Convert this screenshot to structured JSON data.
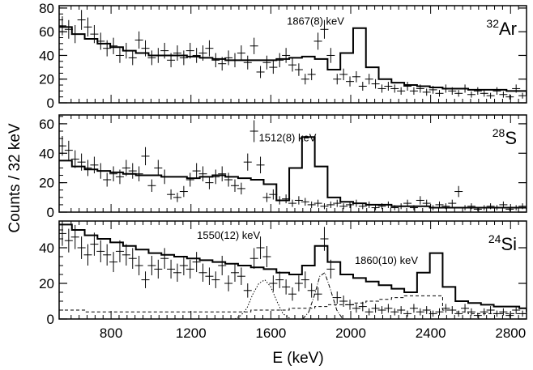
{
  "chart_data": {
    "type": "histogram-with-errorbars",
    "xlabel": "E (keV)",
    "ylabel": "Counts / 32 keV",
    "xlim": [
      540,
      2880
    ],
    "xticks": [
      800,
      1200,
      1600,
      2000,
      2400,
      2800
    ],
    "panels": [
      {
        "isotope_mass": "32",
        "isotope_symbol": "Ar",
        "ylim": [
          0,
          82
        ],
        "yticks": [
          0,
          20,
          40,
          60,
          80
        ],
        "annotations": [
          {
            "text": "1867(8) keV",
            "x": 1680,
            "y": 66
          }
        ],
        "histogram": {
          "bin_width": 64,
          "start": 540,
          "values": [
            64,
            58,
            54,
            50,
            47,
            44,
            42,
            40,
            40,
            40,
            39,
            38,
            37,
            36,
            36,
            36,
            36,
            37,
            38,
            39,
            37,
            28,
            42,
            63,
            30,
            20,
            17,
            15,
            14,
            13,
            12,
            12,
            11,
            11,
            11,
            10,
            10,
            9,
            9,
            9,
            8,
            8,
            8,
            8,
            6,
            6
          ]
        },
        "points": [
          [
            556,
            65
          ],
          [
            588,
            62
          ],
          [
            620,
            58
          ],
          [
            652,
            70
          ],
          [
            684,
            64
          ],
          [
            716,
            58
          ],
          [
            748,
            52
          ],
          [
            780,
            46
          ],
          [
            812,
            48
          ],
          [
            844,
            40
          ],
          [
            876,
            44
          ],
          [
            908,
            38
          ],
          [
            940,
            53
          ],
          [
            972,
            46
          ],
          [
            1004,
            38
          ],
          [
            1036,
            40
          ],
          [
            1068,
            44
          ],
          [
            1100,
            36
          ],
          [
            1132,
            42
          ],
          [
            1164,
            38
          ],
          [
            1196,
            44
          ],
          [
            1228,
            40
          ],
          [
            1260,
            42
          ],
          [
            1292,
            46
          ],
          [
            1324,
            36
          ],
          [
            1356,
            33
          ],
          [
            1388,
            38
          ],
          [
            1420,
            36
          ],
          [
            1452,
            42
          ],
          [
            1484,
            34
          ],
          [
            1516,
            48
          ],
          [
            1548,
            26
          ],
          [
            1580,
            34
          ],
          [
            1612,
            30
          ],
          [
            1644,
            36
          ],
          [
            1676,
            40
          ],
          [
            1708,
            32
          ],
          [
            1740,
            28
          ],
          [
            1772,
            20
          ],
          [
            1804,
            24
          ],
          [
            1836,
            52
          ],
          [
            1868,
            62
          ],
          [
            1900,
            40
          ],
          [
            1932,
            20
          ],
          [
            1964,
            24
          ],
          [
            1996,
            18
          ],
          [
            2028,
            22
          ],
          [
            2060,
            14
          ],
          [
            2092,
            20
          ],
          [
            2124,
            16
          ],
          [
            2156,
            12
          ],
          [
            2188,
            14
          ],
          [
            2220,
            12
          ],
          [
            2252,
            10
          ],
          [
            2284,
            14
          ],
          [
            2316,
            10
          ],
          [
            2348,
            12
          ],
          [
            2380,
            9
          ],
          [
            2412,
            11
          ],
          [
            2444,
            8
          ],
          [
            2476,
            12
          ],
          [
            2508,
            10
          ],
          [
            2540,
            8
          ],
          [
            2572,
            12
          ],
          [
            2604,
            7
          ],
          [
            2636,
            10
          ],
          [
            2668,
            8
          ],
          [
            2700,
            6
          ],
          [
            2732,
            10
          ],
          [
            2764,
            7
          ],
          [
            2796,
            5
          ],
          [
            2828,
            12
          ],
          [
            2860,
            6
          ]
        ]
      },
      {
        "isotope_mass": "28",
        "isotope_symbol": "S",
        "ylim": [
          0,
          66
        ],
        "yticks": [
          0,
          20,
          40,
          60
        ],
        "annotations": [
          {
            "text": "1512(8) keV",
            "x": 1540,
            "y": 48
          }
        ],
        "histogram": {
          "bin_width": 64,
          "start": 540,
          "values": [
            35,
            31,
            29,
            28,
            27,
            26,
            25,
            25,
            24,
            24,
            23,
            24,
            25,
            24,
            23,
            22,
            19,
            8,
            30,
            51,
            31,
            10,
            7,
            6,
            5,
            5,
            4,
            4,
            4,
            3,
            3,
            3,
            3,
            3,
            3,
            3,
            3,
            2,
            2,
            2,
            2,
            2,
            2,
            2,
            2,
            2
          ]
        },
        "points": [
          [
            556,
            45
          ],
          [
            588,
            42
          ],
          [
            620,
            36
          ],
          [
            652,
            34
          ],
          [
            684,
            30
          ],
          [
            716,
            32
          ],
          [
            748,
            28
          ],
          [
            780,
            22
          ],
          [
            812,
            26
          ],
          [
            844,
            24
          ],
          [
            876,
            30
          ],
          [
            908,
            28
          ],
          [
            940,
            26
          ],
          [
            972,
            38
          ],
          [
            1004,
            18
          ],
          [
            1036,
            30
          ],
          [
            1068,
            24
          ],
          [
            1100,
            12
          ],
          [
            1132,
            10
          ],
          [
            1164,
            14
          ],
          [
            1196,
            22
          ],
          [
            1228,
            28
          ],
          [
            1260,
            26
          ],
          [
            1292,
            20
          ],
          [
            1324,
            24
          ],
          [
            1356,
            26
          ],
          [
            1388,
            22
          ],
          [
            1420,
            18
          ],
          [
            1452,
            16
          ],
          [
            1484,
            34
          ],
          [
            1516,
            55
          ],
          [
            1548,
            32
          ],
          [
            1580,
            10
          ],
          [
            1612,
            12
          ],
          [
            1644,
            8
          ],
          [
            1676,
            9
          ],
          [
            1708,
            6
          ],
          [
            1740,
            8
          ],
          [
            1772,
            7
          ],
          [
            1804,
            5
          ],
          [
            1836,
            6
          ],
          [
            1868,
            4
          ],
          [
            1900,
            5
          ],
          [
            1932,
            6
          ],
          [
            1964,
            4
          ],
          [
            1996,
            5
          ],
          [
            2028,
            6
          ],
          [
            2060,
            4
          ],
          [
            2092,
            5
          ],
          [
            2124,
            3
          ],
          [
            2156,
            4
          ],
          [
            2188,
            5
          ],
          [
            2220,
            3
          ],
          [
            2252,
            4
          ],
          [
            2284,
            6
          ],
          [
            2316,
            3
          ],
          [
            2348,
            8
          ],
          [
            2380,
            6
          ],
          [
            2412,
            3
          ],
          [
            2444,
            5
          ],
          [
            2476,
            4
          ],
          [
            2508,
            6
          ],
          [
            2540,
            14
          ],
          [
            2572,
            3
          ],
          [
            2604,
            4
          ],
          [
            2636,
            2
          ],
          [
            2668,
            3
          ],
          [
            2700,
            4
          ],
          [
            2732,
            3
          ],
          [
            2764,
            5
          ],
          [
            2796,
            2
          ],
          [
            2828,
            3
          ],
          [
            2860,
            4
          ]
        ]
      },
      {
        "isotope_mass": "24",
        "isotope_symbol": "Si",
        "ylim": [
          0,
          55
        ],
        "yticks": [
          0,
          20,
          40
        ],
        "annotations": [
          {
            "text": "1550(12) keV",
            "x": 1230,
            "y": 45
          },
          {
            "text": "1860(10) keV",
            "x": 2020,
            "y": 31
          }
        ],
        "histogram": {
          "bin_width": 64,
          "start": 540,
          "values": [
            53,
            50,
            47,
            45,
            43,
            41,
            39,
            37,
            36,
            35,
            34,
            33,
            32,
            31,
            30,
            29,
            28,
            26,
            25,
            30,
            41,
            32,
            25,
            23,
            21,
            19,
            17,
            15,
            26,
            37,
            18,
            10,
            9,
            8,
            7,
            7,
            6,
            6,
            6,
            6,
            5,
            5,
            5,
            5,
            4,
            4
          ]
        },
        "background_series": {
          "name": "background",
          "bin_width": 64,
          "start": 540,
          "values": [
            5,
            5,
            4,
            4,
            4,
            4,
            4,
            4,
            4,
            4,
            4,
            4,
            4,
            4,
            4,
            5,
            5,
            5,
            6,
            6,
            7,
            8,
            8,
            9,
            10,
            11,
            12,
            13,
            13,
            13,
            5,
            4,
            3,
            3,
            3,
            3,
            3,
            3,
            3,
            3,
            3,
            3,
            3,
            3,
            3,
            3
          ]
        },
        "peak1_series": {
          "name": "peak-1550",
          "points": [
            [
              1420,
              0
            ],
            [
              1450,
              2
            ],
            [
              1480,
              6
            ],
            [
              1510,
              14
            ],
            [
              1540,
              20
            ],
            [
              1570,
              22
            ],
            [
              1600,
              18
            ],
            [
              1630,
              10
            ],
            [
              1660,
              3
            ],
            [
              1700,
              0
            ]
          ]
        },
        "peak2_series": {
          "name": "peak-1860",
          "points": [
            [
              1760,
              0
            ],
            [
              1790,
              4
            ],
            [
              1820,
              14
            ],
            [
              1845,
              24
            ],
            [
              1870,
              26
            ],
            [
              1900,
              16
            ],
            [
              1930,
              5
            ],
            [
              1960,
              0
            ]
          ]
        },
        "points": [
          [
            556,
            48
          ],
          [
            588,
            44
          ],
          [
            620,
            46
          ],
          [
            652,
            40
          ],
          [
            684,
            36
          ],
          [
            716,
            42
          ],
          [
            748,
            38
          ],
          [
            780,
            36
          ],
          [
            812,
            32
          ],
          [
            844,
            38
          ],
          [
            876,
            36
          ],
          [
            908,
            34
          ],
          [
            940,
            30
          ],
          [
            972,
            22
          ],
          [
            1004,
            30
          ],
          [
            1036,
            28
          ],
          [
            1068,
            34
          ],
          [
            1100,
            28
          ],
          [
            1132,
            26
          ],
          [
            1164,
            30
          ],
          [
            1196,
            28
          ],
          [
            1228,
            32
          ],
          [
            1260,
            26
          ],
          [
            1292,
            24
          ],
          [
            1324,
            22
          ],
          [
            1356,
            30
          ],
          [
            1388,
            20
          ],
          [
            1420,
            26
          ],
          [
            1452,
            24
          ],
          [
            1484,
            16
          ],
          [
            1516,
            34
          ],
          [
            1548,
            40
          ],
          [
            1580,
            35
          ],
          [
            1612,
            20
          ],
          [
            1644,
            22
          ],
          [
            1676,
            18
          ],
          [
            1708,
            14
          ],
          [
            1740,
            20
          ],
          [
            1772,
            22
          ],
          [
            1804,
            16
          ],
          [
            1836,
            14
          ],
          [
            1868,
            45
          ],
          [
            1900,
            28
          ],
          [
            1932,
            12
          ],
          [
            1964,
            10
          ],
          [
            1996,
            8
          ],
          [
            2028,
            6
          ],
          [
            2060,
            7
          ],
          [
            2092,
            4
          ],
          [
            2124,
            6
          ],
          [
            2156,
            5
          ],
          [
            2188,
            6
          ],
          [
            2220,
            4
          ],
          [
            2252,
            5
          ],
          [
            2284,
            3
          ],
          [
            2316,
            6
          ],
          [
            2348,
            4
          ],
          [
            2380,
            5
          ],
          [
            2412,
            3
          ],
          [
            2444,
            4
          ],
          [
            2476,
            6
          ],
          [
            2508,
            5
          ],
          [
            2540,
            3
          ],
          [
            2572,
            6
          ],
          [
            2604,
            4
          ],
          [
            2636,
            2
          ],
          [
            2668,
            4
          ],
          [
            2700,
            5
          ],
          [
            2732,
            3
          ],
          [
            2764,
            4
          ],
          [
            2796,
            2
          ],
          [
            2828,
            5
          ],
          [
            2860,
            3
          ]
        ]
      }
    ]
  }
}
